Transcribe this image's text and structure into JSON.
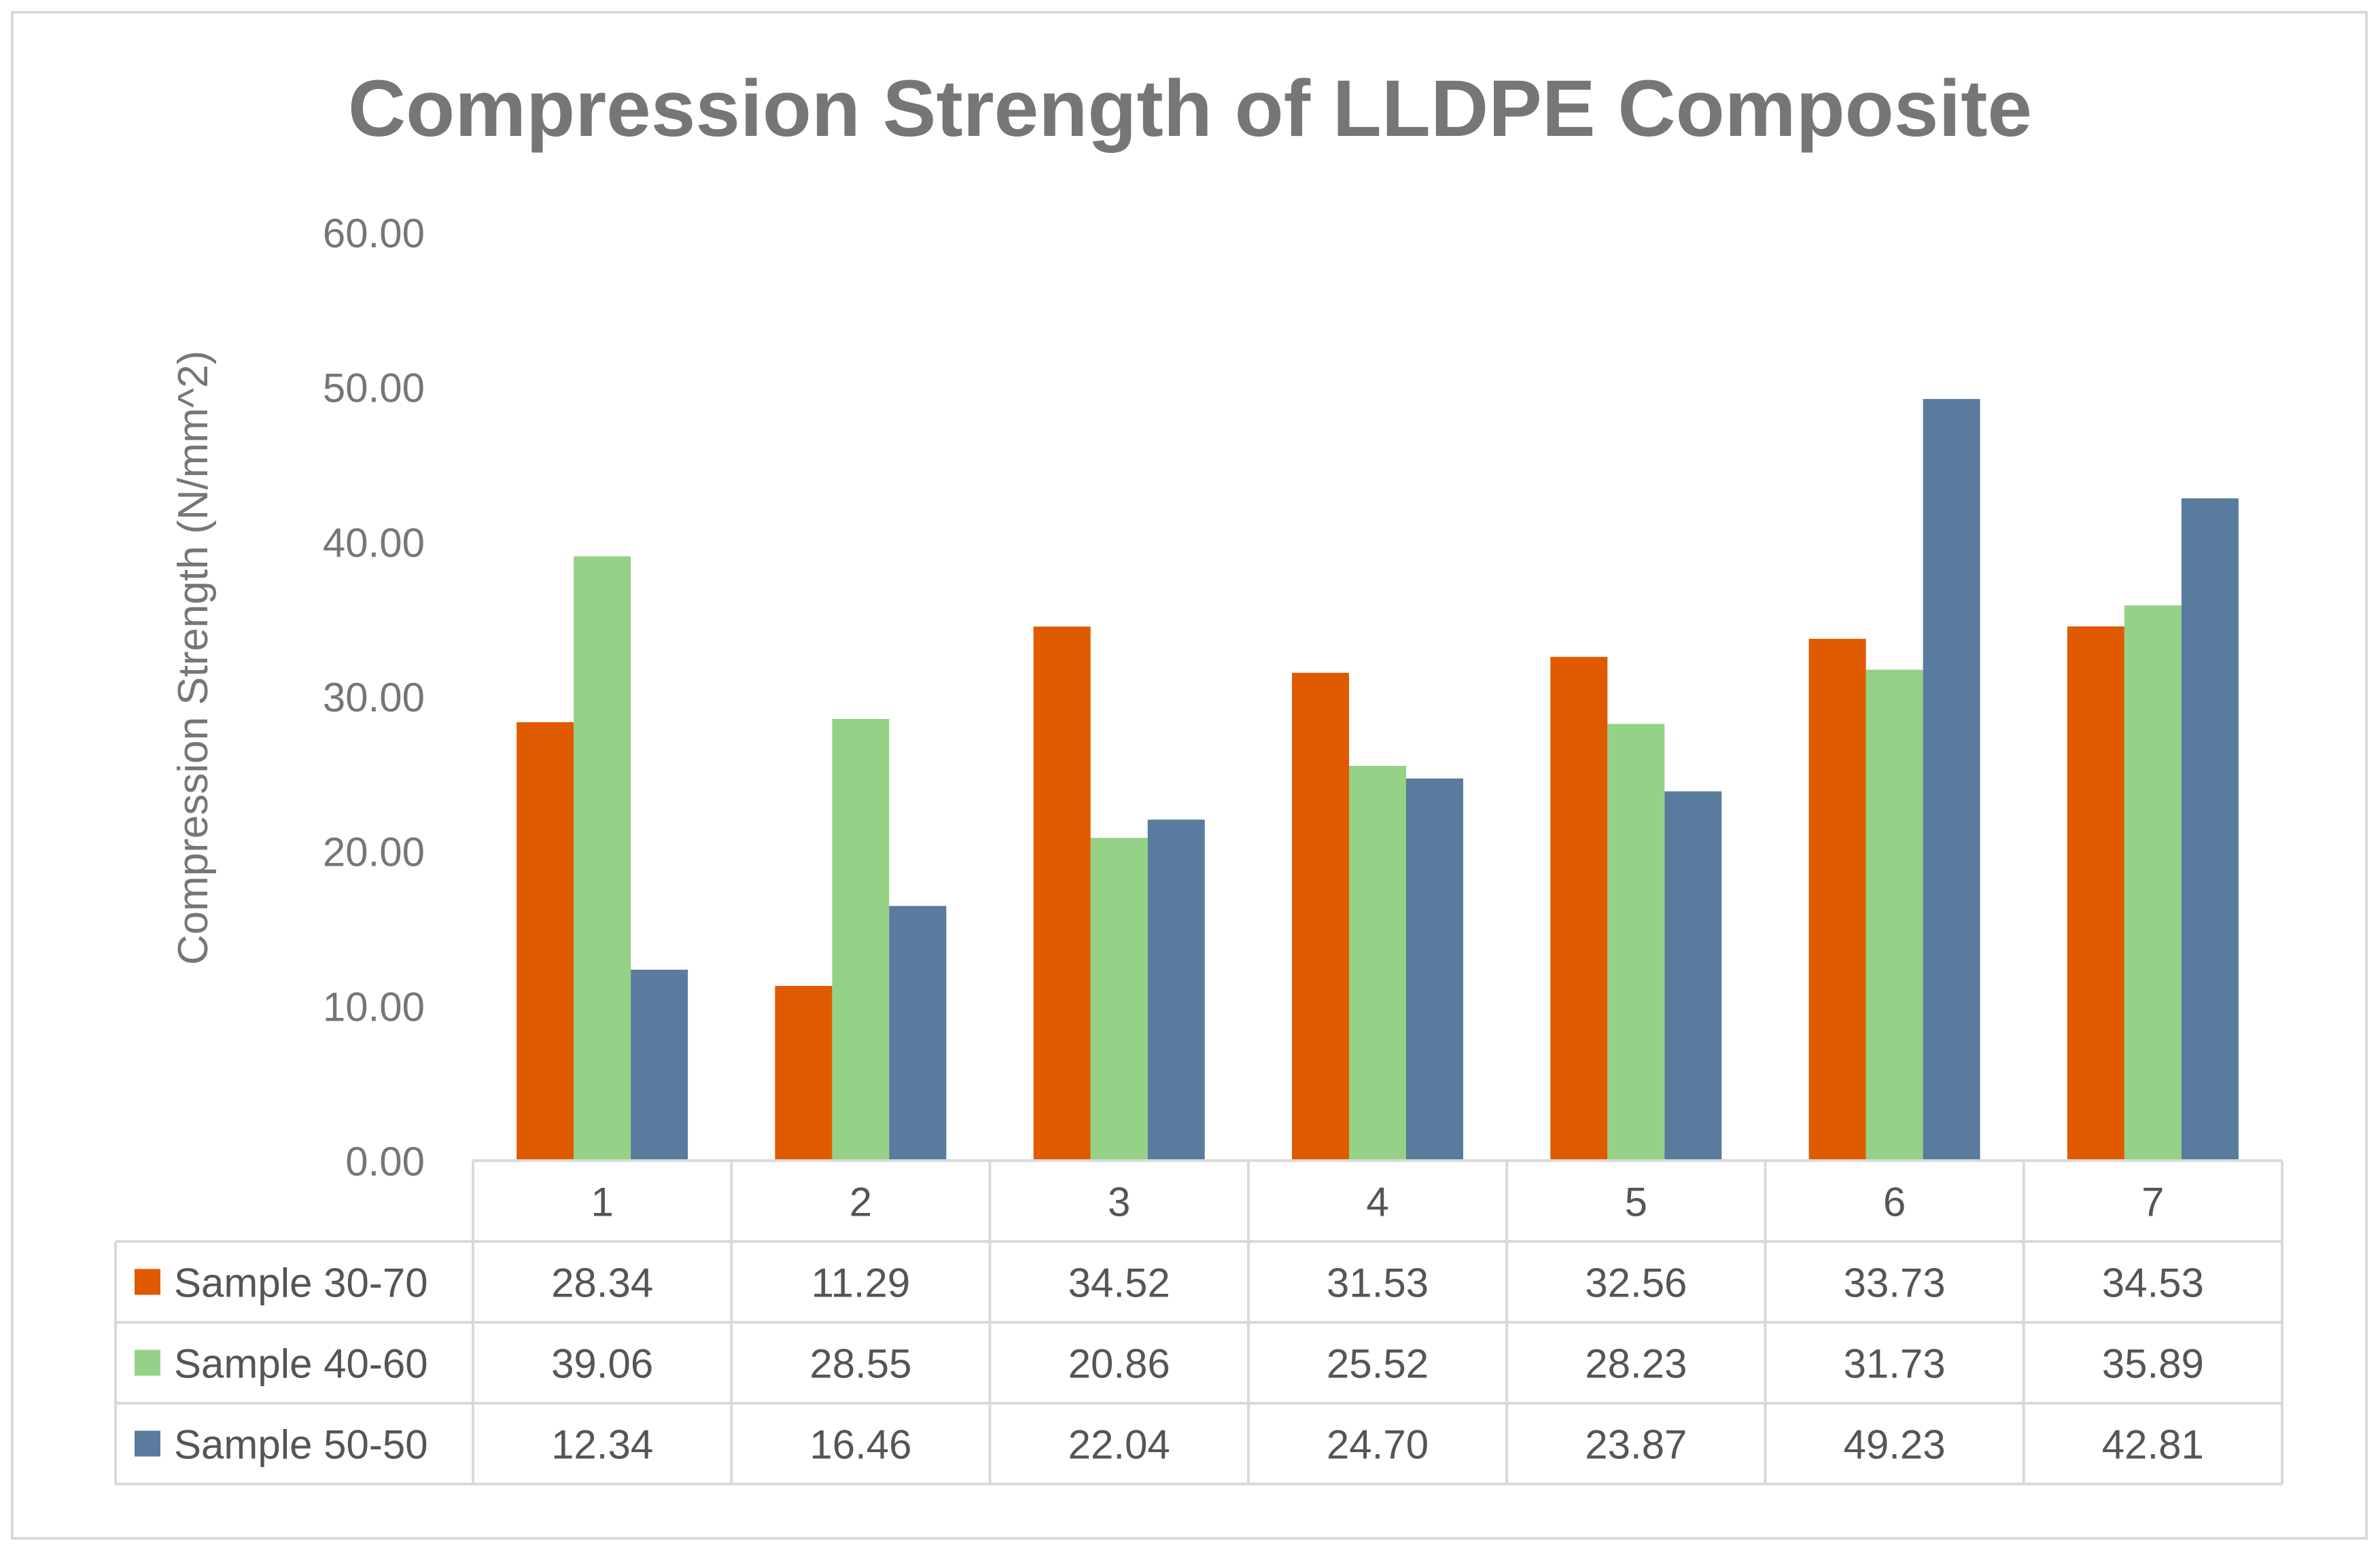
{
  "chart_data": {
    "type": "bar",
    "title": "Compression Strength of LLDPE Composite",
    "xlabel": "",
    "ylabel": "Compression Strength (N/mm^2)",
    "ylim": [
      0,
      60
    ],
    "yticks": [
      "0.00",
      "10.00",
      "20.00",
      "30.00",
      "40.00",
      "50.00",
      "60.00"
    ],
    "grid": false,
    "legend": "data-table-left",
    "categories": [
      "1",
      "2",
      "3",
      "4",
      "5",
      "6",
      "7"
    ],
    "series": [
      {
        "name": "Sample 30-70",
        "color": "#e05a00",
        "values": [
          28.34,
          11.29,
          34.52,
          31.53,
          32.56,
          33.73,
          34.53
        ],
        "labels": [
          "28.34",
          "11.29",
          "34.52",
          "31.53",
          "32.56",
          "33.73",
          "34.53"
        ]
      },
      {
        "name": "Sample 40-60",
        "color": "#95d186",
        "values": [
          39.06,
          28.55,
          20.86,
          25.52,
          28.23,
          31.73,
          35.89
        ],
        "labels": [
          "39.06",
          "28.55",
          "20.86",
          "25.52",
          "28.23",
          "31.73",
          "35.89"
        ]
      },
      {
        "name": "Sample 50-50",
        "color": "#587b9e",
        "values": [
          12.34,
          16.46,
          22.04,
          24.7,
          23.87,
          49.23,
          42.81
        ],
        "labels": [
          "12.34",
          "16.46",
          "22.04",
          "24.70",
          "23.87",
          "49.23",
          "42.81"
        ]
      }
    ]
  },
  "colors": {
    "text": "#767676",
    "table_text": "#555555",
    "table_border": "#d9d9d9",
    "frame_border": "#d9d9d9"
  }
}
